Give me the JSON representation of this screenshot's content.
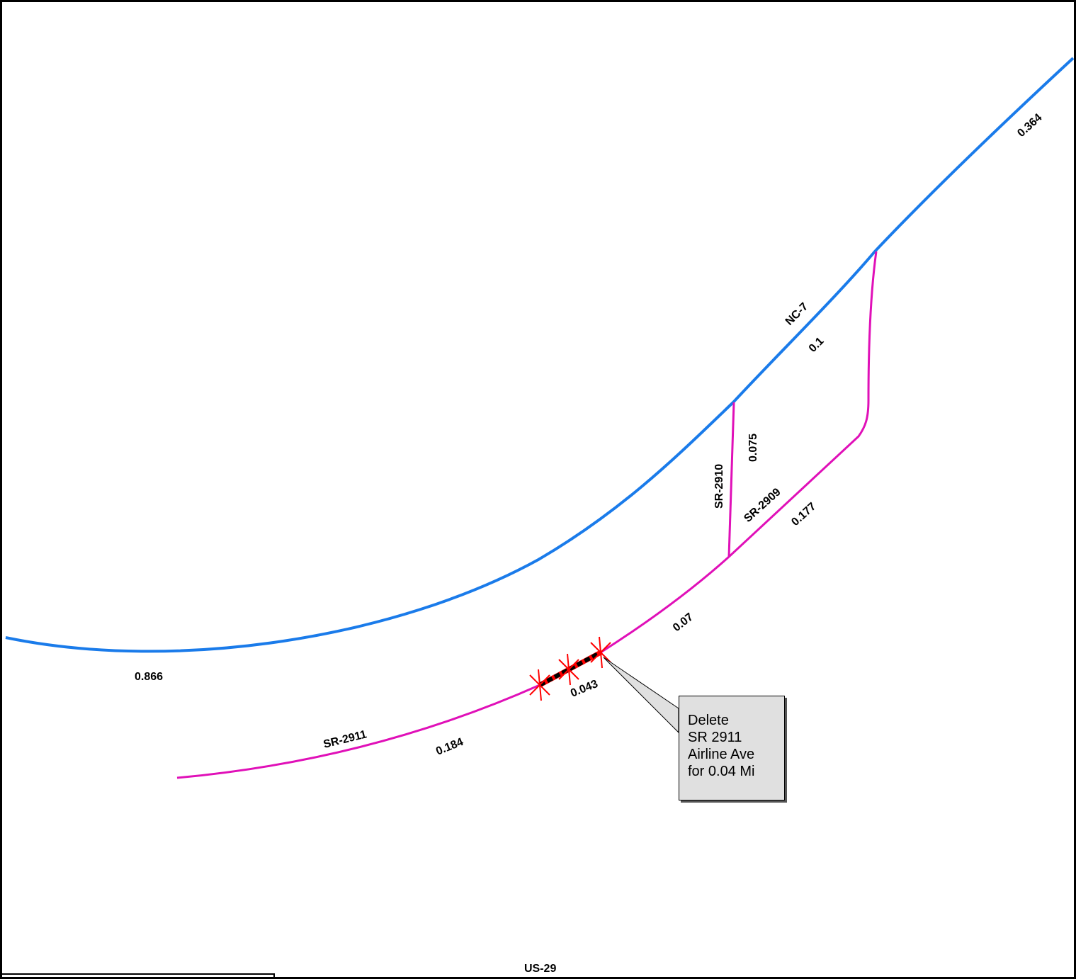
{
  "colors": {
    "state_highway": "#1a7bea",
    "secondary_road": "#e010b8",
    "deletion_marker": "#ff0000",
    "deleted_segment": "#000000",
    "callout_fill": "#e0e0e0"
  },
  "roads": {
    "nc7": {
      "name": "NC-7",
      "segments": [
        "0.866",
        "0.1",
        "0.364"
      ]
    },
    "sr2910": {
      "name": "SR-2910",
      "segments": [
        "0.075"
      ]
    },
    "sr2909": {
      "name": "SR-2909",
      "segments": [
        "0.177"
      ]
    },
    "sr2911": {
      "name": "SR-2911",
      "segments": [
        "0.184",
        "0.043",
        "0.07"
      ]
    },
    "us29": {
      "name": "US-29"
    }
  },
  "callout": {
    "line1": "Delete",
    "line2": "SR 2911",
    "line3": "Airline Ave",
    "line4": "for 0.04 Mi"
  },
  "markers": {
    "icon": "red-x-marker",
    "count": 3
  }
}
